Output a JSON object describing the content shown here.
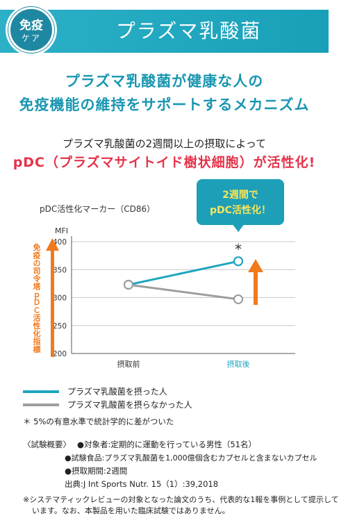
{
  "header": {
    "badge_line1": "免疫",
    "badge_line2": "ケア",
    "title": "プラズマ乳酸菌"
  },
  "headline": {
    "line1": "プラズマ乳酸菌が健康な人の",
    "line2": "免疫機能の維持をサポートするメカニズム"
  },
  "subheadline": {
    "line1": "プラズマ乳酸菌の2週間以上の摂取によって",
    "line2": "pDC（プラズマサイトイド樹状細胞）が活性化!"
  },
  "callout": {
    "line1": "2週間で",
    "line2": "pDC活性化！"
  },
  "side_label": "免疫の司令塔ｐＤＣ活性化指標",
  "significance_mark": "*",
  "chart_data": {
    "type": "line",
    "title": "pDC活性化マーカー（CD86）",
    "ylabel": "MFI",
    "categories": [
      "摂取前",
      "摂取後"
    ],
    "ylim": [
      200,
      400
    ],
    "yticks": [
      200,
      250,
      300,
      350,
      400
    ],
    "grid": true,
    "series": [
      {
        "name": "プラズマ乳酸菌を摂った人",
        "values": [
          323,
          365
        ],
        "color": "#1fa6c0"
      },
      {
        "name": "プラズマ乳酸菌を摂らなかった人",
        "values": [
          323,
          297
        ],
        "color": "#9e9e9e"
      }
    ],
    "legend_position": "bottom-left"
  },
  "notes": {
    "significance": "＊ 5%の有意水準で統計学的に差がついた",
    "trial_label": "〈試験概要〉",
    "subject": "●対象者:定期的に運動を行っている男性（51名）",
    "test_food": "●試験食品:プラズマ乳酸菌を1,000億個含むカプセルと含まないカプセル",
    "period": "●摂取期間:2週間",
    "source": "出典:J Int Sports Nutr. 15（1）:39,2018",
    "disclaimer_line1": "※システマティックレビューの対象となった論文のうち、代表的な1報を事例として提示して",
    "disclaimer_line2": "います。なお、本製品を用いた臨床試験ではありません。"
  },
  "colors": {
    "accent": "#1fa6c0",
    "alert": "#e5334b",
    "arrow": "#f07a1e",
    "gray": "#9e9e9e"
  }
}
